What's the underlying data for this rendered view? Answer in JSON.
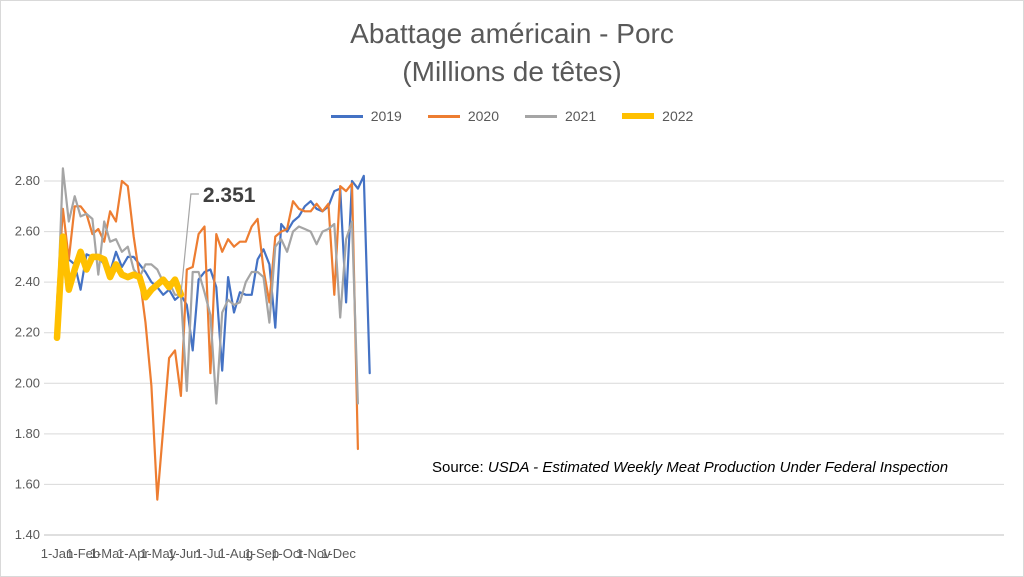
{
  "chart_data": {
    "type": "line",
    "title": "Abattage américain - Porc",
    "subtitle": "(Millions de têtes)",
    "ylim": [
      1.4,
      2.8
    ],
    "yticks": [
      "1.40",
      "1.60",
      "1.80",
      "2.00",
      "2.20",
      "2.40",
      "2.60",
      "2.80"
    ],
    "xticks": [
      "1-Jan",
      "1-Feb",
      "1-Mar",
      "1-Apr",
      "1-May",
      "1-Jun",
      "1-Jul",
      "1-Aug",
      "1-Sep",
      "1-Oct",
      "1-Nov",
      "1-Dec"
    ],
    "grid": "horizontal",
    "legend_position": "top",
    "annotation": "2.351",
    "source_prefix": "Source: ",
    "source_text": "USDA - Estimated Weekly Meat Production Under Federal Inspection",
    "series": [
      {
        "name": "2019",
        "color": "#4472c4",
        "width": 2.2,
        "values": [
          2.22,
          2.51,
          2.49,
          2.47,
          2.37,
          2.51,
          2.5,
          2.5,
          2.47,
          2.44,
          2.52,
          2.46,
          2.5,
          2.5,
          2.47,
          2.44,
          2.4,
          2.38,
          2.35,
          2.37,
          2.33,
          2.35,
          2.31,
          2.13,
          2.41,
          2.44,
          2.45,
          2.38,
          2.05,
          2.42,
          2.28,
          2.36,
          2.35,
          2.35,
          2.49,
          2.53,
          2.47,
          2.22,
          2.63,
          2.6,
          2.64,
          2.66,
          2.7,
          2.72,
          2.69,
          2.68,
          2.7,
          2.76,
          2.77,
          2.32,
          2.8,
          2.77,
          2.82,
          2.04
        ]
      },
      {
        "name": "2020",
        "color": "#ed7d31",
        "width": 2.2,
        "values": [
          2.32,
          2.69,
          2.49,
          2.7,
          2.7,
          2.67,
          2.59,
          2.61,
          2.56,
          2.68,
          2.64,
          2.8,
          2.78,
          2.58,
          2.42,
          2.24,
          1.99,
          1.54,
          1.82,
          2.1,
          2.13,
          1.95,
          2.45,
          2.46,
          2.59,
          2.62,
          2.04,
          2.59,
          2.52,
          2.57,
          2.54,
          2.56,
          2.56,
          2.62,
          2.65,
          2.45,
          2.32,
          2.58,
          2.6,
          2.61,
          2.72,
          2.69,
          2.68,
          2.68,
          2.71,
          2.68,
          2.71,
          2.35,
          2.78,
          2.76,
          2.79,
          1.74
        ]
      },
      {
        "name": "2021",
        "color": "#a5a5a5",
        "width": 2.2,
        "values": [
          2.24,
          2.85,
          2.64,
          2.74,
          2.66,
          2.67,
          2.65,
          2.43,
          2.64,
          2.56,
          2.57,
          2.52,
          2.54,
          2.45,
          2.42,
          2.47,
          2.47,
          2.45,
          2.4,
          2.4,
          2.35,
          2.35,
          1.97,
          2.44,
          2.44,
          2.36,
          2.27,
          1.92,
          2.28,
          2.33,
          2.31,
          2.32,
          2.4,
          2.44,
          2.44,
          2.42,
          2.24,
          2.54,
          2.57,
          2.52,
          2.6,
          2.62,
          2.61,
          2.6,
          2.55,
          2.6,
          2.61,
          2.63,
          2.26,
          2.57,
          2.64,
          1.92
        ]
      },
      {
        "name": "2022",
        "color": "#ffc000",
        "width": 6.5,
        "values": [
          2.18,
          2.58,
          2.37,
          2.45,
          2.52,
          2.45,
          2.5,
          2.5,
          2.49,
          2.42,
          2.47,
          2.43,
          2.42,
          2.43,
          2.42,
          2.34,
          2.37,
          2.39,
          2.41,
          2.38,
          2.41,
          2.351
        ]
      }
    ]
  }
}
